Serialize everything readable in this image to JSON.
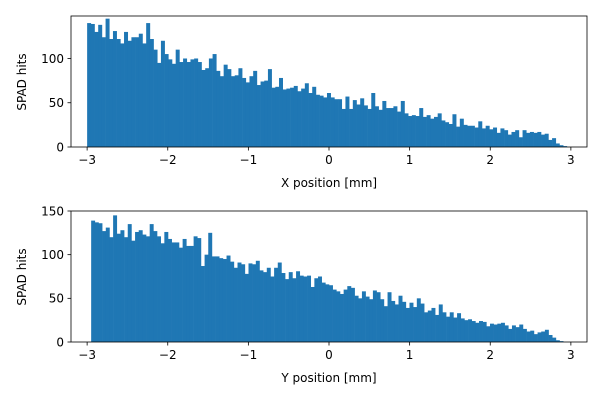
{
  "chart_data": [
    {
      "type": "bar",
      "xlabel": "X position [mm]",
      "ylabel": "SPAD hits",
      "xlim": [
        -3.2,
        3.2
      ],
      "ylim": [
        0,
        148
      ],
      "xticks": [
        "-3",
        "-2",
        "-1",
        "0",
        "1",
        "2",
        "3"
      ],
      "yticks": [
        "0",
        "50",
        "100"
      ],
      "grid": false,
      "color": "#1f77b4",
      "bin_range": [
        -3,
        2.95
      ],
      "values": [
        140,
        139,
        130,
        138,
        124,
        145,
        122,
        131,
        122,
        117,
        130,
        120,
        124,
        124,
        128,
        117,
        140,
        122,
        110,
        95,
        120,
        105,
        99,
        94,
        110,
        96,
        100,
        96,
        99,
        100,
        96,
        87,
        89,
        100,
        105,
        86,
        80,
        93,
        88,
        80,
        81,
        89,
        78,
        73,
        80,
        86,
        70,
        74,
        75,
        88,
        67,
        68,
        78,
        65,
        66,
        67,
        69,
        63,
        66,
        72,
        61,
        68,
        59,
        58,
        56,
        61,
        56,
        54,
        54,
        43,
        57,
        43,
        53,
        48,
        55,
        47,
        43,
        61,
        46,
        42,
        52,
        44,
        44,
        46,
        40,
        52,
        38,
        35,
        36,
        35,
        44,
        34,
        36,
        32,
        34,
        38,
        30,
        28,
        26,
        37,
        23,
        32,
        25,
        24,
        24,
        22,
        29,
        21,
        24,
        20,
        22,
        16,
        21,
        19,
        14,
        17,
        19,
        11,
        19,
        16,
        17,
        16,
        17,
        14,
        15,
        8,
        10,
        4,
        2,
        1
      ]
    },
    {
      "type": "bar",
      "xlabel": "Y position [mm]",
      "ylabel": "SPAD hits",
      "xlim": [
        -3.2,
        3.2
      ],
      "ylim": [
        0,
        150
      ],
      "xticks": [
        "-3",
        "-2",
        "-1",
        "0",
        "1",
        "2",
        "3"
      ],
      "yticks": [
        "0",
        "50",
        "100",
        "150"
      ],
      "grid": false,
      "color": "#1f77b4",
      "bin_range": [
        -2.95,
        2.95
      ],
      "values": [
        139,
        137,
        136,
        127,
        131,
        120,
        145,
        124,
        128,
        120,
        135,
        116,
        126,
        128,
        123,
        121,
        135,
        127,
        121,
        113,
        126,
        118,
        114,
        114,
        108,
        118,
        110,
        110,
        121,
        119,
        87,
        100,
        125,
        98,
        98,
        96,
        95,
        99,
        92,
        85,
        91,
        89,
        78,
        90,
        89,
        93,
        82,
        80,
        85,
        75,
        85,
        91,
        79,
        72,
        80,
        73,
        81,
        76,
        75,
        76,
        63,
        73,
        75,
        68,
        66,
        65,
        60,
        58,
        55,
        60,
        64,
        62,
        53,
        50,
        58,
        52,
        49,
        59,
        57,
        49,
        41,
        57,
        47,
        43,
        53,
        46,
        39,
        45,
        40,
        50,
        44,
        34,
        36,
        39,
        31,
        43,
        34,
        29,
        34,
        28,
        33,
        27,
        25,
        26,
        24,
        22,
        24,
        23,
        18,
        21,
        20,
        21,
        22,
        19,
        15,
        19,
        17,
        20,
        15,
        12,
        13,
        9,
        11,
        12,
        14,
        8,
        5,
        2,
        1,
        0
      ]
    }
  ]
}
